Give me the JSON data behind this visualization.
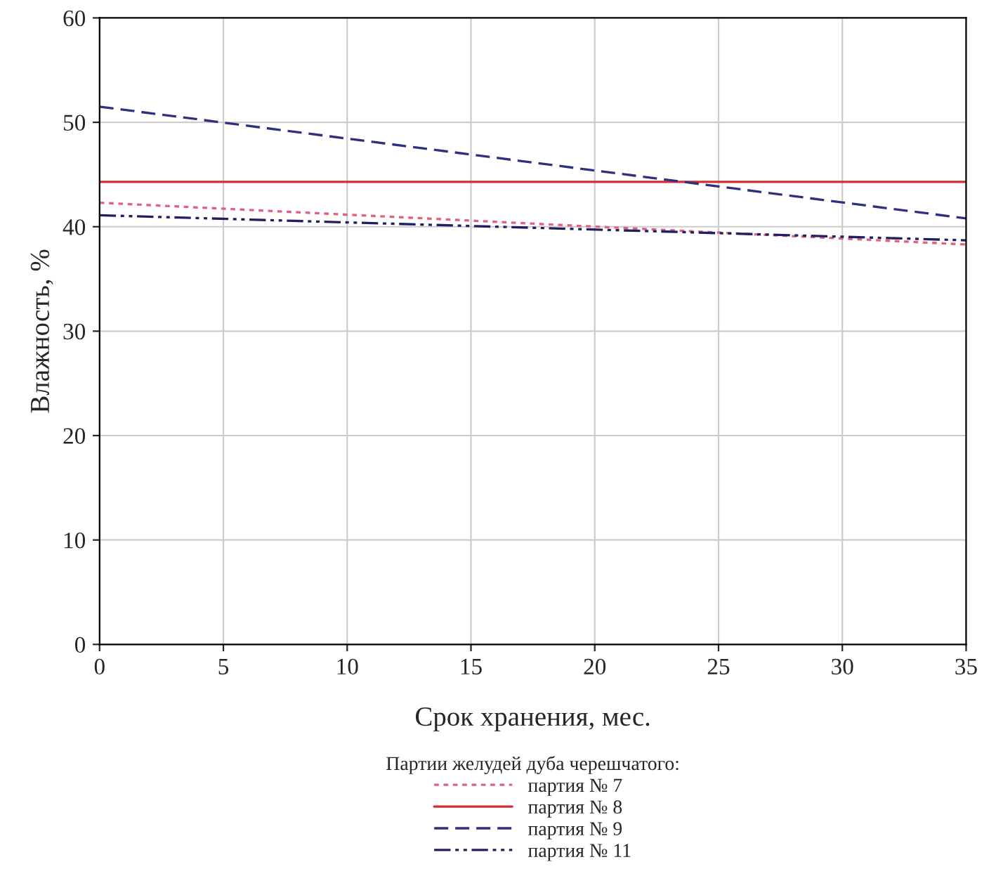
{
  "chart_data": {
    "type": "line",
    "xlabel": "Срок хранения, мес.",
    "ylabel": "Влажность, %",
    "legend_title": "Партии желудей дуба черешчатого:",
    "x": [
      0,
      35
    ],
    "series": [
      {
        "name": "партия № 7",
        "color": "#e06080",
        "line_style": "dotted",
        "values": [
          42.3,
          38.3
        ]
      },
      {
        "name": "партия № 8",
        "color": "#d03030",
        "line_style": "solid",
        "values": [
          44.3,
          44.3
        ]
      },
      {
        "name": "партия № 9",
        "color": "#303080",
        "line_style": "dashed",
        "values": [
          51.5,
          40.8
        ]
      },
      {
        "name": "партия № 11",
        "color": "#202060",
        "line_style": "dashdot",
        "values": [
          41.1,
          38.7
        ]
      }
    ],
    "xlim": [
      0,
      35
    ],
    "xticks": [
      0,
      5,
      10,
      15,
      20,
      25,
      30,
      35
    ],
    "ylim": [
      0,
      60
    ],
    "yticks": [
      0,
      10,
      20,
      30,
      40,
      50,
      60
    ],
    "grid": true,
    "legend": "bottom"
  }
}
